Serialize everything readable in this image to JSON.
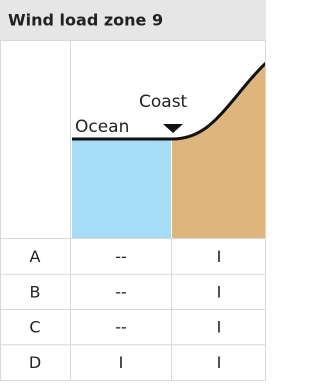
{
  "header": {
    "title": "Wind load zone 9"
  },
  "diagram": {
    "ocean_label": "Ocean",
    "coast_label": "Coast"
  },
  "table": {
    "rows": [
      [
        "A",
        "--",
        "I"
      ],
      [
        "B",
        "--",
        "I"
      ],
      [
        "C",
        "--",
        "I"
      ],
      [
        "D",
        "I",
        "I"
      ]
    ]
  }
}
